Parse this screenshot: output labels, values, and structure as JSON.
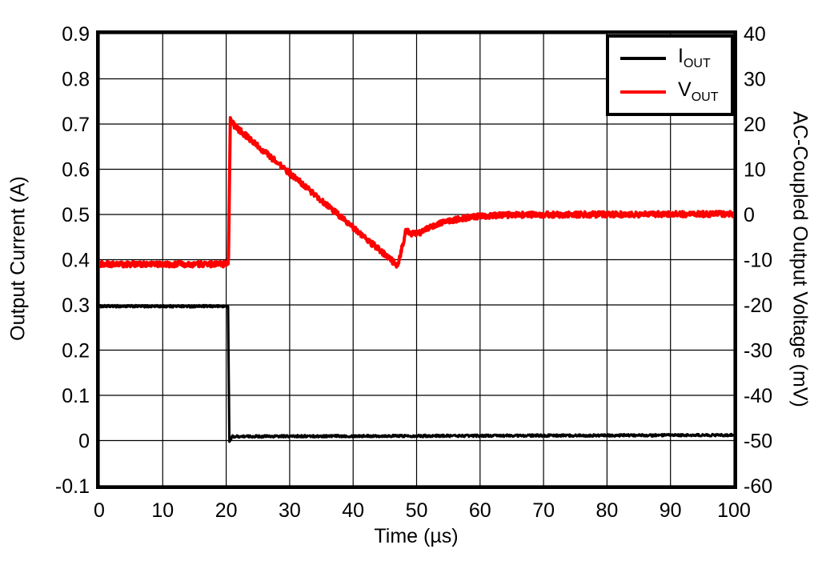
{
  "chart_data": {
    "type": "line",
    "title": "",
    "grid": true,
    "background": "#ffffff",
    "x_axis": {
      "label": "Time (µs)",
      "range": [
        0,
        100
      ],
      "ticks": [
        [
          0,
          "0"
        ],
        [
          10,
          "10"
        ],
        [
          20,
          "20"
        ],
        [
          30,
          "30"
        ],
        [
          40,
          "40"
        ],
        [
          50,
          "50"
        ],
        [
          60,
          "60"
        ],
        [
          70,
          "70"
        ],
        [
          80,
          "80"
        ],
        [
          90,
          "90"
        ],
        [
          100,
          "100"
        ]
      ]
    },
    "y_axis_left": {
      "label": "Output Current (A)",
      "range": [
        -0.1,
        0.9
      ],
      "ticks": [
        [
          0.9,
          "0.9"
        ],
        [
          0.8,
          "0.8"
        ],
        [
          0.7,
          "0.7"
        ],
        [
          0.6,
          "0.6"
        ],
        [
          0.5,
          "0.5"
        ],
        [
          0.4,
          "0.4"
        ],
        [
          0.3,
          "0.3"
        ],
        [
          0.2,
          "0.2"
        ],
        [
          0.1,
          "0.1"
        ],
        [
          0,
          "0"
        ],
        [
          -0.1,
          "-0.1"
        ]
      ]
    },
    "y_axis_right": {
      "label": "AC-Coupled Output Voltage (mV)",
      "range": [
        -60,
        40
      ],
      "ticks": [
        [
          40,
          "40"
        ],
        [
          30,
          "30"
        ],
        [
          20,
          "20"
        ],
        [
          10,
          "10"
        ],
        [
          0,
          "0"
        ],
        [
          -10,
          "-10"
        ],
        [
          -20,
          "-20"
        ],
        [
          -30,
          "-30"
        ],
        [
          -40,
          "-40"
        ],
        [
          -50,
          "-50"
        ],
        [
          -60,
          "-60"
        ]
      ]
    },
    "legend": {
      "position": "top-right",
      "entries": [
        {
          "name": "I_OUT",
          "symbol": "I",
          "subscript": "OUT",
          "color": "#000000"
        },
        {
          "name": "V_OUT",
          "symbol": "V",
          "subscript": "OUT",
          "color": "#ff0000"
        }
      ]
    },
    "series": [
      {
        "name": "I_OUT",
        "axis": "left",
        "color": "#000000",
        "stroke_width": 3,
        "noise_amplitude": 0.0025,
        "points": [
          [
            0,
            0.297
          ],
          [
            20.3,
            0.297
          ],
          [
            20.5,
            0.0
          ],
          [
            20.6,
            -0.002
          ],
          [
            20.9,
            0.009
          ],
          [
            40,
            0.01
          ],
          [
            100,
            0.012
          ]
        ]
      },
      {
        "name": "V_OUT",
        "axis": "right",
        "color": "#ff0000",
        "stroke_width": 4,
        "noise_amplitude": 0.6,
        "points": [
          [
            0,
            -11
          ],
          [
            20.35,
            -11
          ],
          [
            20.5,
            4
          ],
          [
            20.65,
            21
          ],
          [
            21.3,
            19.6
          ],
          [
            47,
            -11.3
          ],
          [
            47.6,
            -8
          ],
          [
            48.3,
            -3.6
          ],
          [
            49.2,
            -4.3
          ],
          [
            50.6,
            -4.1
          ],
          [
            52,
            -2.9
          ],
          [
            54,
            -1.9
          ],
          [
            56,
            -1.2
          ],
          [
            58,
            -0.7
          ],
          [
            60,
            -0.4
          ],
          [
            63,
            -0.15
          ],
          [
            67,
            -0.05
          ],
          [
            100,
            0.1
          ]
        ]
      }
    ]
  }
}
